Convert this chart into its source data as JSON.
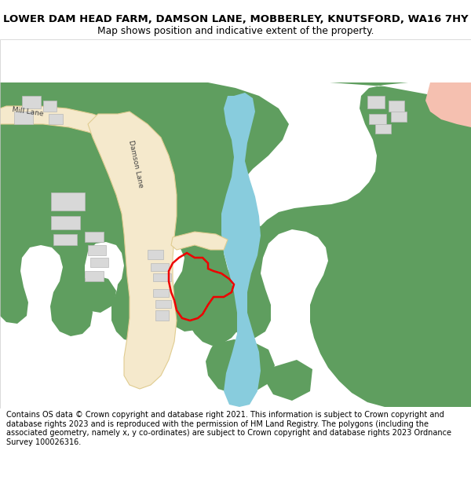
{
  "title_line1": "LOWER DAM HEAD FARM, DAMSON LANE, MOBBERLEY, KNUTSFORD, WA16 7HY",
  "title_line2": "Map shows position and indicative extent of the property.",
  "footer_text": "Contains OS data © Crown copyright and database right 2021. This information is subject to Crown copyright and database rights 2023 and is reproduced with the permission of HM Land Registry. The polygons (including the associated geometry, namely x, y co-ordinates) are subject to Crown copyright and database rights 2023 Ordnance Survey 100026316.",
  "fig_width": 6.0,
  "fig_height": 6.25,
  "map_bg": "#ffffff",
  "green_color": "#5f9e5f",
  "blue_color": "#88ccdd",
  "road_color": "#f5e9cc",
  "road_edge_color": "#e0cc90",
  "building_color": "#d8d8d8",
  "building_edge_color": "#b8b8b8",
  "red_color": "#ee0000",
  "pink_color": "#f5c0b0",
  "title_fontsize": 9.5,
  "subtitle_fontsize": 8.8,
  "footer_fontsize": 7.0,
  "label_fontsize": 6.5
}
